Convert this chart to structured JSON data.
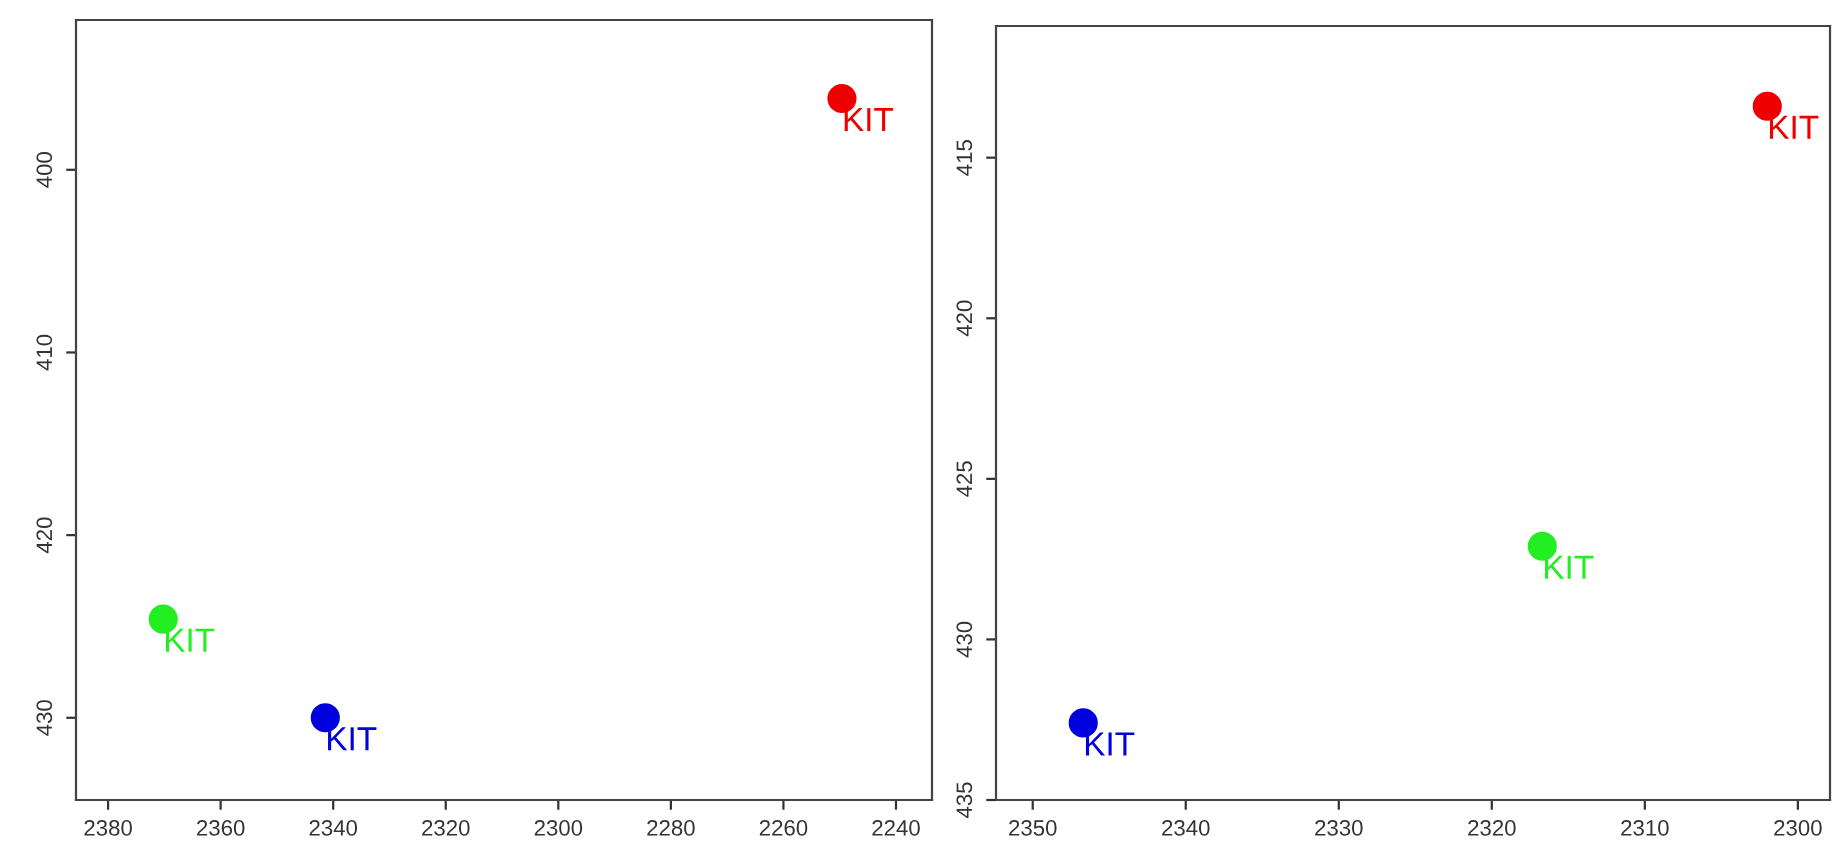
{
  "chart_data": [
    {
      "type": "scatter",
      "xlim": [
        2385.7,
        2233.6
      ],
      "ylim": [
        434.5,
        391.8
      ],
      "xticks": [
        2380,
        2360,
        2340,
        2320,
        2300,
        2280,
        2260,
        2240
      ],
      "yticks": [
        400,
        410,
        420,
        430
      ],
      "marker": "circle",
      "grid": false,
      "series": [
        {
          "color": "#ee0000",
          "x": [
            2249.6
          ],
          "values": [
            396.1
          ]
        },
        {
          "color": "#0000dd",
          "x": [
            2341.4
          ],
          "values": [
            430.0
          ]
        },
        {
          "color": "#22ee22",
          "x": [
            2370.2
          ],
          "values": [
            424.6
          ]
        }
      ],
      "annotations": [
        {
          "text": "KIT",
          "x": 2249.6,
          "y": 396.1
        },
        {
          "text": "KIT",
          "x": 2341.4,
          "y": 430.0
        },
        {
          "text": "KIT",
          "x": 2370.2,
          "y": 424.6
        }
      ]
    },
    {
      "type": "scatter",
      "xlim": [
        2352.4,
        2297.9
      ],
      "ylim": [
        435,
        410.9
      ],
      "xticks": [
        2350,
        2340,
        2330,
        2320,
        2310,
        2300
      ],
      "yticks": [
        415,
        420,
        425,
        430,
        435
      ],
      "marker": "circle",
      "grid": false,
      "series": [
        {
          "color": "#ee0000",
          "x": [
            2302.0
          ],
          "values": [
            413.4
          ]
        },
        {
          "color": "#0000dd",
          "x": [
            2346.7
          ],
          "values": [
            432.6
          ]
        },
        {
          "color": "#22ee22",
          "x": [
            2316.7
          ],
          "values": [
            427.1
          ]
        }
      ],
      "annotations": [
        {
          "text": "KIT",
          "x": 2302.0,
          "y": 413.4
        },
        {
          "text": "KIT",
          "x": 2346.7,
          "y": 432.6
        },
        {
          "text": "KIT",
          "x": 2316.7,
          "y": 427.1
        }
      ]
    }
  ]
}
